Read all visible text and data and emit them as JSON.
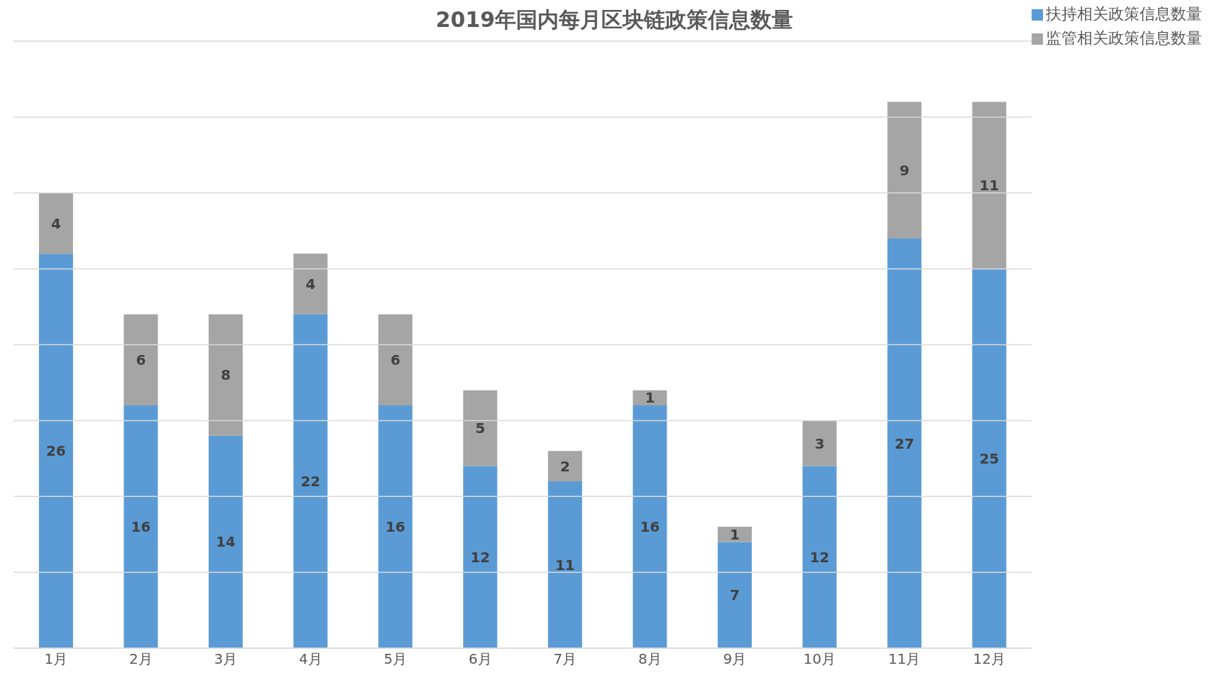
{
  "chart_data": {
    "type": "bar",
    "title": "2019年国内每月区块链政策信息数量",
    "categories": [
      "1月",
      "2月",
      "3月",
      "4月",
      "5月",
      "6月",
      "7月",
      "8月",
      "9月",
      "10月",
      "11月",
      "12月"
    ],
    "series": [
      {
        "name": "扶持相关政策信息数量",
        "color": "#5b9bd5",
        "values": [
          26,
          16,
          14,
          22,
          16,
          12,
          11,
          16,
          7,
          12,
          27,
          25
        ]
      },
      {
        "name": "监管相关政策信息数量",
        "color": "#a5a5a5",
        "values": [
          4,
          6,
          8,
          4,
          6,
          5,
          2,
          1,
          1,
          3,
          9,
          11
        ]
      }
    ],
    "stacked": true,
    "data_labels": true,
    "ylim": [
      0,
      40
    ],
    "yticks": [
      {
        "value": 0,
        "label": null
      },
      {
        "value": 5,
        "label": null
      },
      {
        "value": 10,
        "label": null
      },
      {
        "value": 15,
        "label": null
      },
      {
        "value": 20,
        "label": null
      },
      {
        "value": 25,
        "label": null
      },
      {
        "value": 30,
        "label": null
      },
      {
        "value": 35,
        "label": null
      },
      {
        "value": 40,
        "label": null
      }
    ],
    "tick_labels": "x",
    "grid": "y",
    "legend": "top right"
  }
}
